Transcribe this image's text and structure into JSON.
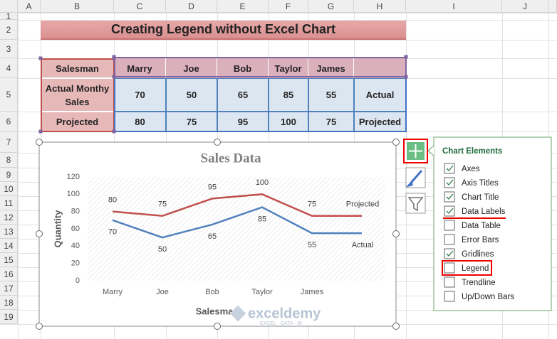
{
  "sheet": {
    "columns": [
      "A",
      "B",
      "C",
      "D",
      "E",
      "F",
      "G",
      "H",
      "I",
      "J"
    ],
    "rows": [
      1,
      2,
      3,
      4,
      5,
      6,
      7,
      8,
      9,
      10,
      11,
      12,
      13,
      14,
      15,
      16,
      17,
      18,
      19
    ],
    "title": "Creating Legend without Excel Chart",
    "table": {
      "header": [
        "Salesman",
        "Marry",
        "Joe",
        "Bob",
        "Taylor",
        "James"
      ],
      "rows": [
        [
          "Actual Monthy Sales",
          70,
          50,
          65,
          85,
          55,
          "Actual"
        ],
        [
          "Projected",
          80,
          75,
          95,
          100,
          75,
          "Projected"
        ]
      ]
    }
  },
  "chart": {
    "type": "line",
    "title": "Sales Data",
    "x_label": "Salesman",
    "y_label": "Quantity",
    "categories": [
      "Marry",
      "Joe",
      "Bob",
      "Taylor",
      "James",
      null
    ],
    "ylim": [
      0,
      120
    ],
    "yticks": [
      0,
      20,
      40,
      60,
      80,
      100,
      120
    ],
    "grid": true,
    "series": [
      {
        "name": "Actual",
        "color": "#4f81bd",
        "values": [
          70,
          50,
          65,
          85,
          55,
          55
        ]
      },
      {
        "name": "Projected",
        "color": "#c0504d",
        "values": [
          80,
          75,
          95,
          100,
          75,
          75
        ]
      }
    ]
  },
  "panel": {
    "title": "Chart Elements",
    "items": [
      {
        "label": "Axes",
        "checked": true
      },
      {
        "label": "Axis Titles",
        "checked": true
      },
      {
        "label": "Chart Title",
        "checked": true
      },
      {
        "label": "Data Labels",
        "checked": true
      },
      {
        "label": "Data Table",
        "checked": false
      },
      {
        "label": "Error Bars",
        "checked": false
      },
      {
        "label": "Gridlines",
        "checked": true
      },
      {
        "label": "Legend",
        "checked": false
      },
      {
        "label": "Trendline",
        "checked": false
      },
      {
        "label": "Up/Down Bars",
        "checked": false
      }
    ]
  },
  "watermark": {
    "name": "exceldemy",
    "tagline": "EXCEL · DATA · BI"
  }
}
